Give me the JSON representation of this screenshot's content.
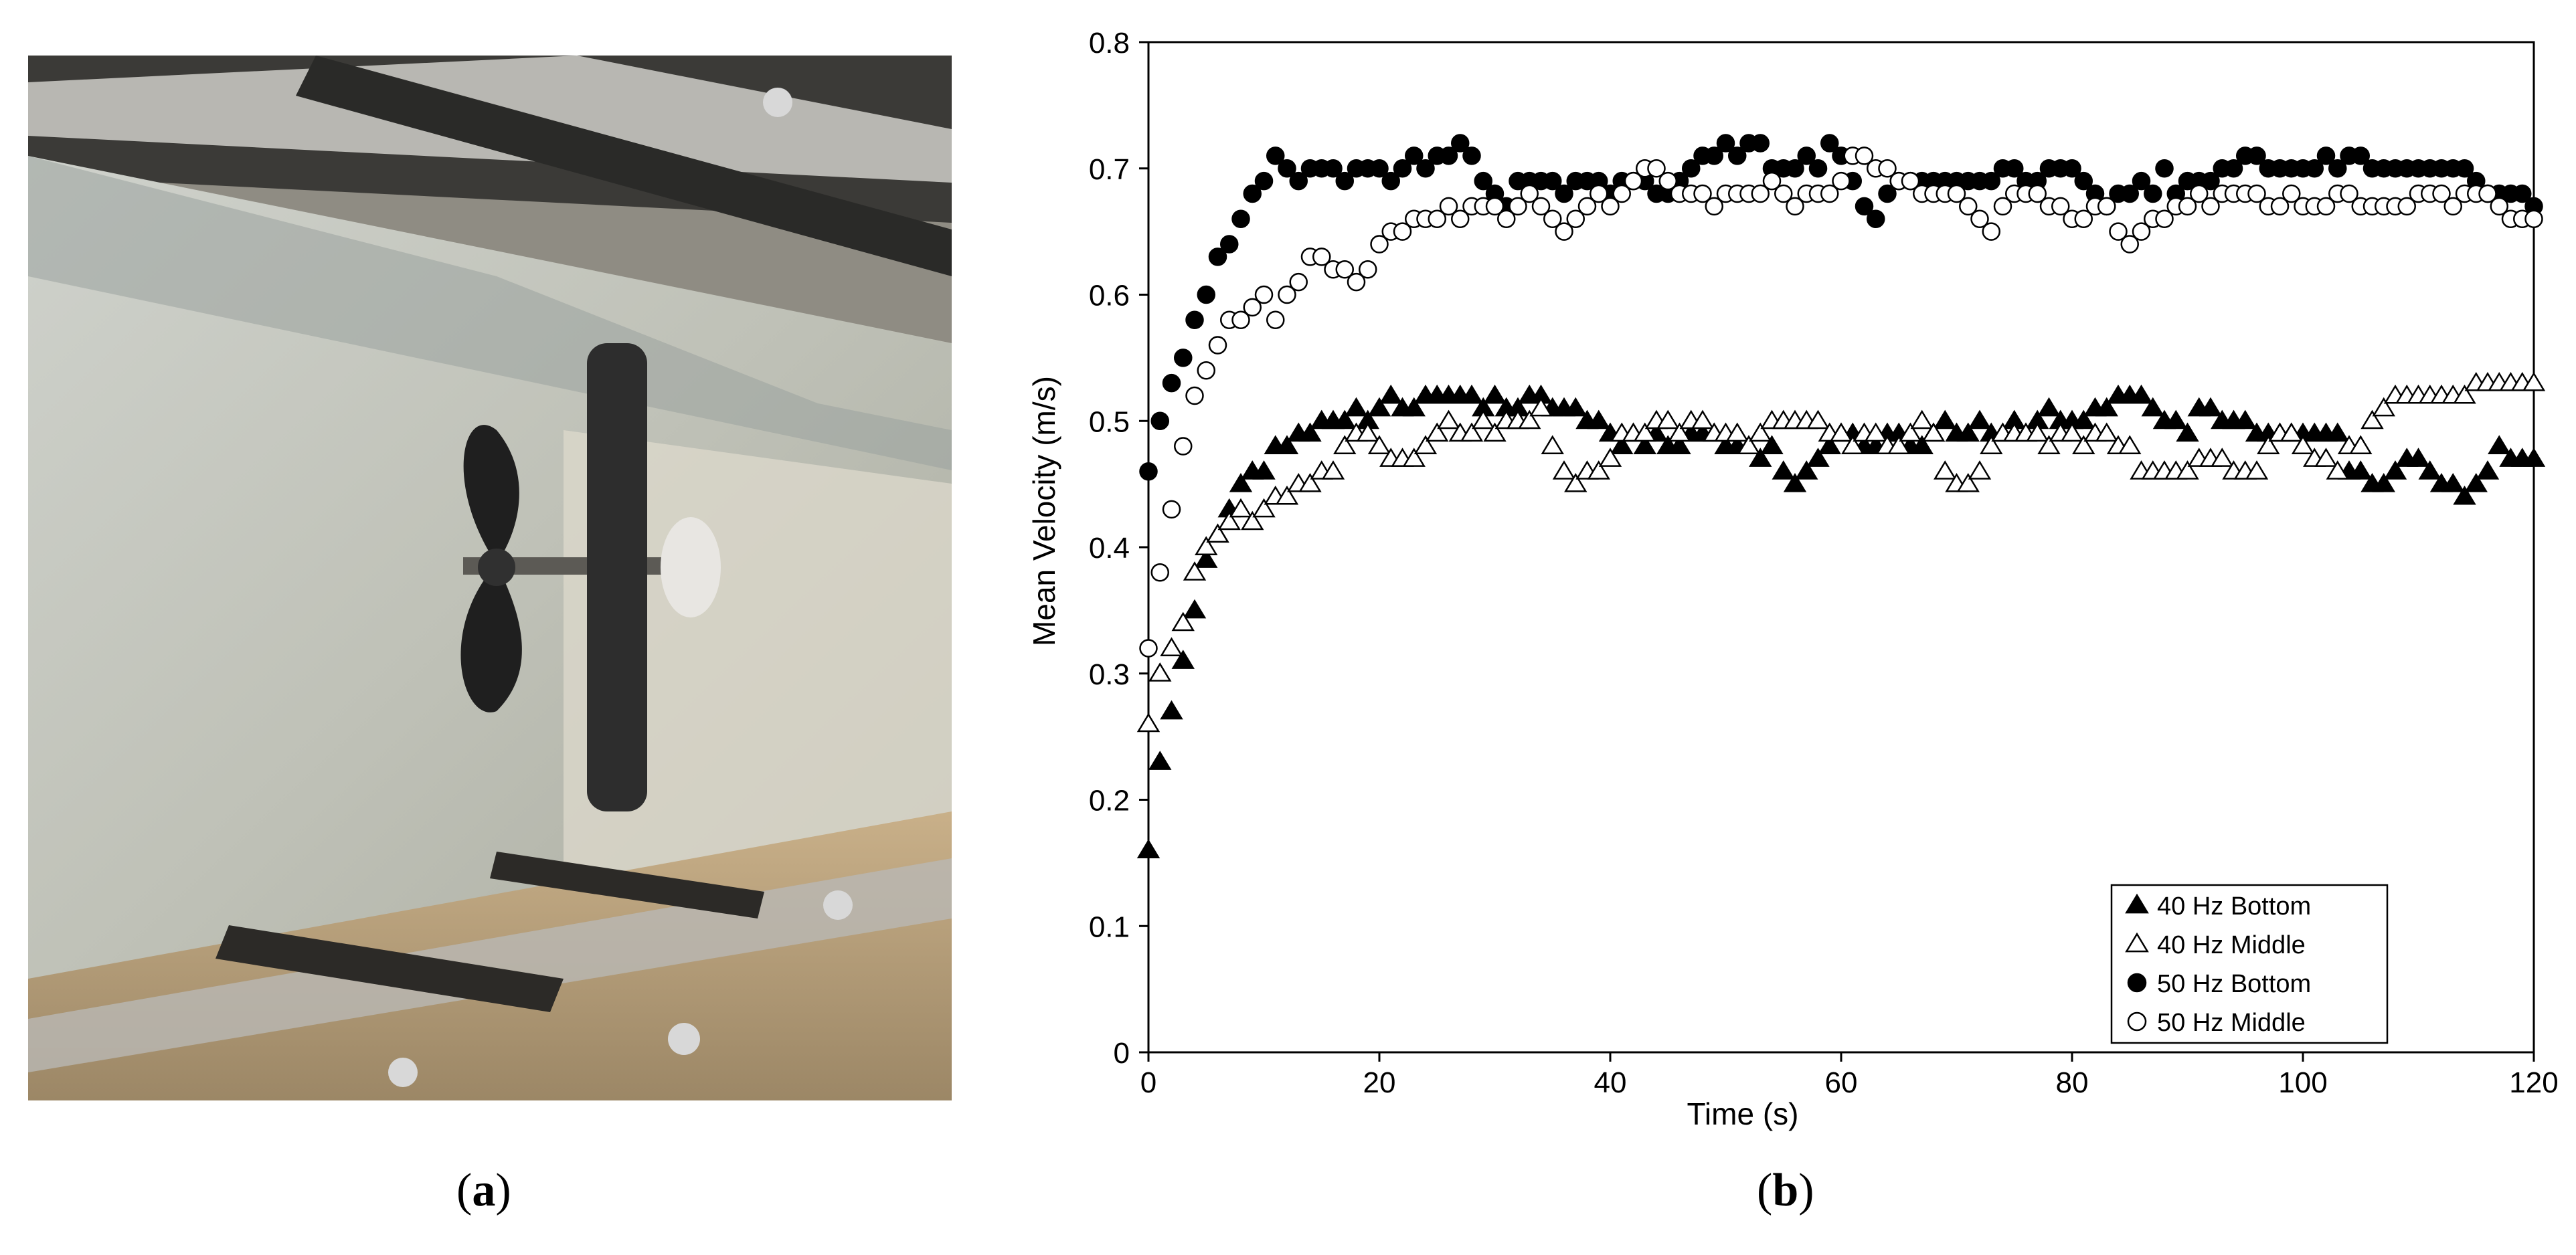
{
  "panels": {
    "a": {
      "open": "(",
      "letter": "a",
      "close": ")"
    },
    "b": {
      "open": "(",
      "letter": "b",
      "close": ")"
    }
  },
  "photo": {
    "description_icon": "propeller-in-water-flume-photo"
  },
  "chart_data": {
    "type": "scatter",
    "xlabel": "Time (s)",
    "ylabel": "Mean Velocity (m/s)",
    "xlim": [
      0,
      120
    ],
    "ylim": [
      0,
      0.8
    ],
    "xticks": [
      0,
      20,
      40,
      60,
      80,
      100,
      120
    ],
    "yticks": [
      0,
      0.1,
      0.2,
      0.3,
      0.4,
      0.5,
      0.6,
      0.7,
      0.8
    ],
    "grid": false,
    "legend_position": "bottom-right",
    "series": [
      {
        "name": "40 Hz Bottom",
        "marker": "triangle-filled",
        "x": [
          0,
          1,
          2,
          3,
          4,
          5,
          6,
          7,
          8,
          9,
          10,
          11,
          12,
          13,
          14,
          15,
          16,
          17,
          18,
          19,
          20,
          21,
          22,
          23,
          24,
          25,
          26,
          27,
          28,
          29,
          30,
          31,
          32,
          33,
          34,
          35,
          36,
          37,
          38,
          39,
          40,
          41,
          42,
          43,
          44,
          45,
          46,
          47,
          48,
          49,
          50,
          51,
          52,
          53,
          54,
          55,
          56,
          57,
          58,
          59,
          60,
          61,
          62,
          63,
          64,
          65,
          66,
          67,
          68,
          69,
          70,
          71,
          72,
          73,
          74,
          75,
          76,
          77,
          78,
          79,
          80,
          81,
          82,
          83,
          84,
          85,
          86,
          87,
          88,
          89,
          90,
          91,
          92,
          93,
          94,
          95,
          96,
          97,
          98,
          99,
          100,
          101,
          102,
          103,
          104,
          105,
          106,
          107,
          108,
          109,
          110,
          111,
          112,
          113,
          114,
          115,
          116,
          117,
          118,
          119,
          120
        ],
        "y": [
          0.16,
          0.23,
          0.27,
          0.31,
          0.35,
          0.39,
          0.41,
          0.43,
          0.45,
          0.46,
          0.46,
          0.48,
          0.48,
          0.49,
          0.49,
          0.5,
          0.5,
          0.5,
          0.51,
          0.5,
          0.51,
          0.52,
          0.51,
          0.51,
          0.52,
          0.52,
          0.52,
          0.52,
          0.52,
          0.51,
          0.52,
          0.51,
          0.51,
          0.52,
          0.52,
          0.51,
          0.51,
          0.51,
          0.5,
          0.5,
          0.49,
          0.48,
          0.49,
          0.48,
          0.49,
          0.48,
          0.48,
          0.49,
          0.49,
          0.49,
          0.48,
          0.48,
          0.48,
          0.47,
          0.48,
          0.46,
          0.45,
          0.46,
          0.47,
          0.48,
          0.49,
          0.49,
          0.48,
          0.48,
          0.49,
          0.49,
          0.48,
          0.48,
          0.49,
          0.5,
          0.49,
          0.49,
          0.5,
          0.49,
          0.49,
          0.5,
          0.49,
          0.5,
          0.51,
          0.5,
          0.5,
          0.5,
          0.51,
          0.51,
          0.52,
          0.52,
          0.52,
          0.51,
          0.5,
          0.5,
          0.49,
          0.51,
          0.51,
          0.5,
          0.5,
          0.5,
          0.49,
          0.49,
          0.49,
          0.49,
          0.49,
          0.49,
          0.49,
          0.49,
          0.46,
          0.46,
          0.45,
          0.45,
          0.46,
          0.47,
          0.47,
          0.46,
          0.45,
          0.45,
          0.44,
          0.45,
          0.46,
          0.48,
          0.47,
          0.47,
          0.47
        ]
      },
      {
        "name": "40 Hz Middle",
        "marker": "triangle-open",
        "x": [
          0,
          1,
          2,
          3,
          4,
          5,
          6,
          7,
          8,
          9,
          10,
          11,
          12,
          13,
          14,
          15,
          16,
          17,
          18,
          19,
          20,
          21,
          22,
          23,
          24,
          25,
          26,
          27,
          28,
          29,
          30,
          31,
          32,
          33,
          34,
          35,
          36,
          37,
          38,
          39,
          40,
          41,
          42,
          43,
          44,
          45,
          46,
          47,
          48,
          49,
          50,
          51,
          52,
          53,
          54,
          55,
          56,
          57,
          58,
          59,
          60,
          61,
          62,
          63,
          64,
          65,
          66,
          67,
          68,
          69,
          70,
          71,
          72,
          73,
          74,
          75,
          76,
          77,
          78,
          79,
          80,
          81,
          82,
          83,
          84,
          85,
          86,
          87,
          88,
          89,
          90,
          91,
          92,
          93,
          94,
          95,
          96,
          97,
          98,
          99,
          100,
          101,
          102,
          103,
          104,
          105,
          106,
          107,
          108,
          109,
          110,
          111,
          112,
          113,
          114,
          115,
          116,
          117,
          118,
          119,
          120
        ],
        "y": [
          0.26,
          0.3,
          0.32,
          0.34,
          0.38,
          0.4,
          0.41,
          0.42,
          0.43,
          0.42,
          0.43,
          0.44,
          0.44,
          0.45,
          0.45,
          0.46,
          0.46,
          0.48,
          0.49,
          0.49,
          0.48,
          0.47,
          0.47,
          0.47,
          0.48,
          0.49,
          0.5,
          0.49,
          0.49,
          0.5,
          0.49,
          0.5,
          0.5,
          0.5,
          0.51,
          0.48,
          0.46,
          0.45,
          0.46,
          0.46,
          0.47,
          0.49,
          0.49,
          0.49,
          0.5,
          0.5,
          0.49,
          0.5,
          0.5,
          0.49,
          0.49,
          0.49,
          0.48,
          0.49,
          0.5,
          0.5,
          0.5,
          0.5,
          0.5,
          0.49,
          0.49,
          0.48,
          0.49,
          0.49,
          0.48,
          0.48,
          0.49,
          0.5,
          0.49,
          0.46,
          0.45,
          0.45,
          0.46,
          0.48,
          0.49,
          0.49,
          0.49,
          0.49,
          0.48,
          0.49,
          0.49,
          0.48,
          0.49,
          0.49,
          0.48,
          0.48,
          0.46,
          0.46,
          0.46,
          0.46,
          0.46,
          0.47,
          0.47,
          0.47,
          0.46,
          0.46,
          0.46,
          0.48,
          0.49,
          0.49,
          0.48,
          0.47,
          0.47,
          0.46,
          0.48,
          0.48,
          0.5,
          0.51,
          0.52,
          0.52,
          0.52,
          0.52,
          0.52,
          0.52,
          0.52,
          0.53,
          0.53,
          0.53,
          0.53,
          0.53,
          0.53
        ]
      },
      {
        "name": "50 Hz Bottom",
        "marker": "circle-filled",
        "x": [
          0,
          1,
          2,
          3,
          4,
          5,
          6,
          7,
          8,
          9,
          10,
          11,
          12,
          13,
          14,
          15,
          16,
          17,
          18,
          19,
          20,
          21,
          22,
          23,
          24,
          25,
          26,
          27,
          28,
          29,
          30,
          31,
          32,
          33,
          34,
          35,
          36,
          37,
          38,
          39,
          40,
          41,
          42,
          43,
          44,
          45,
          46,
          47,
          48,
          49,
          50,
          51,
          52,
          53,
          54,
          55,
          56,
          57,
          58,
          59,
          60,
          61,
          62,
          63,
          64,
          65,
          66,
          67,
          68,
          69,
          70,
          71,
          72,
          73,
          74,
          75,
          76,
          77,
          78,
          79,
          80,
          81,
          82,
          83,
          84,
          85,
          86,
          87,
          88,
          89,
          90,
          91,
          92,
          93,
          94,
          95,
          96,
          97,
          98,
          99,
          100,
          101,
          102,
          103,
          104,
          105,
          106,
          107,
          108,
          109,
          110,
          111,
          112,
          113,
          114,
          115,
          116,
          117,
          118,
          119,
          120
        ],
        "y": [
          0.46,
          0.5,
          0.53,
          0.55,
          0.58,
          0.6,
          0.63,
          0.64,
          0.66,
          0.68,
          0.69,
          0.71,
          0.7,
          0.69,
          0.7,
          0.7,
          0.7,
          0.69,
          0.7,
          0.7,
          0.7,
          0.69,
          0.7,
          0.71,
          0.7,
          0.71,
          0.71,
          0.72,
          0.71,
          0.69,
          0.68,
          0.67,
          0.69,
          0.69,
          0.69,
          0.69,
          0.68,
          0.69,
          0.69,
          0.69,
          0.68,
          0.69,
          0.69,
          0.69,
          0.68,
          0.68,
          0.69,
          0.7,
          0.71,
          0.71,
          0.72,
          0.71,
          0.72,
          0.72,
          0.7,
          0.7,
          0.7,
          0.71,
          0.7,
          0.72,
          0.71,
          0.69,
          0.67,
          0.66,
          0.68,
          0.69,
          0.69,
          0.69,
          0.69,
          0.69,
          0.69,
          0.69,
          0.69,
          0.69,
          0.7,
          0.7,
          0.69,
          0.69,
          0.7,
          0.7,
          0.7,
          0.69,
          0.68,
          0.67,
          0.68,
          0.68,
          0.69,
          0.68,
          0.7,
          0.68,
          0.69,
          0.69,
          0.69,
          0.7,
          0.7,
          0.71,
          0.71,
          0.7,
          0.7,
          0.7,
          0.7,
          0.7,
          0.71,
          0.7,
          0.71,
          0.71,
          0.7,
          0.7,
          0.7,
          0.7,
          0.7,
          0.7,
          0.7,
          0.7,
          0.7,
          0.69,
          0.68,
          0.68,
          0.68,
          0.68,
          0.67
        ]
      },
      {
        "name": "50 Hz Middle",
        "marker": "circle-open",
        "x": [
          0,
          1,
          2,
          3,
          4,
          5,
          6,
          7,
          8,
          9,
          10,
          11,
          12,
          13,
          14,
          15,
          16,
          17,
          18,
          19,
          20,
          21,
          22,
          23,
          24,
          25,
          26,
          27,
          28,
          29,
          30,
          31,
          32,
          33,
          34,
          35,
          36,
          37,
          38,
          39,
          40,
          41,
          42,
          43,
          44,
          45,
          46,
          47,
          48,
          49,
          50,
          51,
          52,
          53,
          54,
          55,
          56,
          57,
          58,
          59,
          60,
          61,
          62,
          63,
          64,
          65,
          66,
          67,
          68,
          69,
          70,
          71,
          72,
          73,
          74,
          75,
          76,
          77,
          78,
          79,
          80,
          81,
          82,
          83,
          84,
          85,
          86,
          87,
          88,
          89,
          90,
          91,
          92,
          93,
          94,
          95,
          96,
          97,
          98,
          99,
          100,
          101,
          102,
          103,
          104,
          105,
          106,
          107,
          108,
          109,
          110,
          111,
          112,
          113,
          114,
          115,
          116,
          117,
          118,
          119,
          120
        ],
        "y": [
          0.32,
          0.38,
          0.43,
          0.48,
          0.52,
          0.54,
          0.56,
          0.58,
          0.58,
          0.59,
          0.6,
          0.58,
          0.6,
          0.61,
          0.63,
          0.63,
          0.62,
          0.62,
          0.61,
          0.62,
          0.64,
          0.65,
          0.65,
          0.66,
          0.66,
          0.66,
          0.67,
          0.66,
          0.67,
          0.67,
          0.67,
          0.66,
          0.67,
          0.68,
          0.67,
          0.66,
          0.65,
          0.66,
          0.67,
          0.68,
          0.67,
          0.68,
          0.69,
          0.7,
          0.7,
          0.69,
          0.68,
          0.68,
          0.68,
          0.67,
          0.68,
          0.68,
          0.68,
          0.68,
          0.69,
          0.68,
          0.67,
          0.68,
          0.68,
          0.68,
          0.69,
          0.71,
          0.71,
          0.7,
          0.7,
          0.69,
          0.69,
          0.68,
          0.68,
          0.68,
          0.68,
          0.67,
          0.66,
          0.65,
          0.67,
          0.68,
          0.68,
          0.68,
          0.67,
          0.67,
          0.66,
          0.66,
          0.67,
          0.67,
          0.65,
          0.64,
          0.65,
          0.66,
          0.66,
          0.67,
          0.67,
          0.68,
          0.67,
          0.68,
          0.68,
          0.68,
          0.68,
          0.67,
          0.67,
          0.68,
          0.67,
          0.67,
          0.67,
          0.68,
          0.68,
          0.67,
          0.67,
          0.67,
          0.67,
          0.67,
          0.68,
          0.68,
          0.68,
          0.67,
          0.68,
          0.68,
          0.68,
          0.67,
          0.66,
          0.66,
          0.66
        ]
      }
    ]
  }
}
